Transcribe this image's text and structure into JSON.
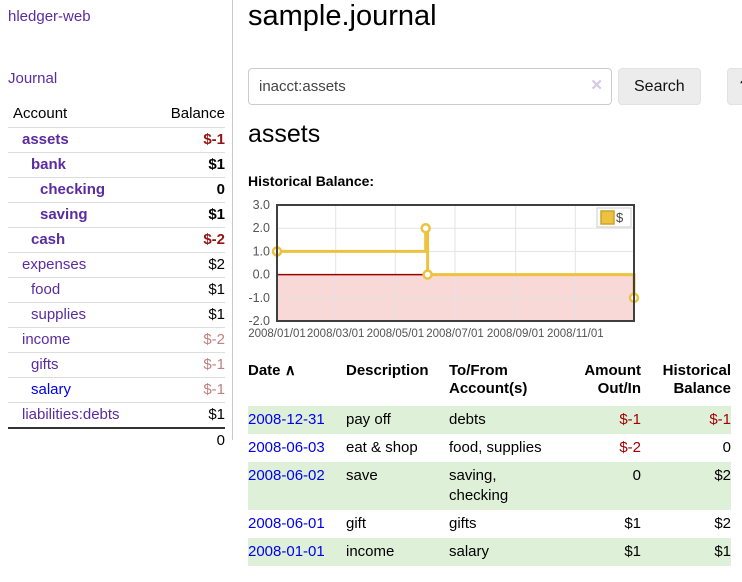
{
  "sidebar": {
    "brand": "hledger-web",
    "nav": {
      "journal": "Journal"
    },
    "table": {
      "headers": {
        "account": "Account",
        "balance": "Balance"
      },
      "accounts": [
        {
          "name": "assets",
          "depth": 1,
          "emph": true,
          "balance": "$-1"
        },
        {
          "name": "bank",
          "depth": 2,
          "emph": true,
          "balance": "$1"
        },
        {
          "name": "checking",
          "depth": 3,
          "emph": true,
          "balance": "0"
        },
        {
          "name": "saving",
          "depth": 3,
          "emph": true,
          "balance": "$1"
        },
        {
          "name": "cash",
          "depth": 2,
          "emph": true,
          "balance": "$-2"
        },
        {
          "name": "expenses",
          "depth": 1,
          "emph": false,
          "balance": "$2"
        },
        {
          "name": "food",
          "depth": 2,
          "emph": false,
          "balance": "$1"
        },
        {
          "name": "supplies",
          "depth": 2,
          "emph": false,
          "balance": "$1"
        },
        {
          "name": "income",
          "depth": 1,
          "emph": false,
          "balance": "$-2"
        },
        {
          "name": "gifts",
          "depth": 2,
          "emph": false,
          "balance": "$-1"
        },
        {
          "name": "salary",
          "depth": 2,
          "emph": false,
          "balance": "$-1",
          "unvisited": true
        },
        {
          "name": "liabilities:debts",
          "depth": 1,
          "emph": false,
          "balance": "$1"
        }
      ],
      "total": "0"
    }
  },
  "main": {
    "title": "sample.journal",
    "search": {
      "value": "inacct:assets",
      "clear_icon": "✕",
      "button_label": "Search",
      "help_label": "?"
    },
    "account_heading": "assets",
    "chart_label": "Historical Balance:"
  },
  "chart_data": {
    "type": "line",
    "style": "step-after",
    "title": "Historical Balance",
    "xlim": [
      "2008-01-01",
      "2008-12-31"
    ],
    "ylim": [
      -2,
      3
    ],
    "yticks": [
      3.0,
      2.0,
      1.0,
      0.0,
      -1.0,
      -2.0
    ],
    "ytick_labels": [
      "3.0",
      "2.0",
      "1.0",
      "0.0",
      "-1.0",
      "-2.0"
    ],
    "xticks": [
      {
        "date": "2008-01-01",
        "label": "2008/01/01"
      },
      {
        "date": "2008-03-01",
        "label": "2008/03/01"
      },
      {
        "date": "2008-05-01",
        "label": "2008/05/01"
      },
      {
        "date": "2008-07-01",
        "label": "2008/07/01"
      },
      {
        "date": "2008-09-01",
        "label": "2008/09/01"
      },
      {
        "date": "2008-11-01",
        "label": "2008/11/01"
      }
    ],
    "series": [
      {
        "name": "$",
        "color": "#edc240",
        "points": [
          {
            "date": "2008-01-01",
            "value": 1
          },
          {
            "date": "2008-06-01",
            "value": 2
          },
          {
            "date": "2008-06-03",
            "value": 0
          },
          {
            "date": "2008-12-31",
            "value": -1
          }
        ]
      }
    ],
    "legend": {
      "position": "top-right",
      "label": "$"
    },
    "grid": true,
    "colors": {
      "negative_region": "#f9d8d8",
      "zero_line": "#990000",
      "frame": "#3f3f3f",
      "gridline": "#e3e3e3",
      "tick_text": "#545454"
    }
  },
  "register": {
    "headers": {
      "date": "Date",
      "sort_icon": "∧",
      "description": "Description",
      "accounts": "To/From Account(s)",
      "amount": "Amount Out/In",
      "balance": "Historical Balance"
    },
    "rows": [
      {
        "date": "2008-12-31",
        "description": "pay off",
        "accounts": "debts",
        "amount": "$-1",
        "balance": "$-1"
      },
      {
        "date": "2008-06-03",
        "description": "eat & shop",
        "accounts": "food, supplies",
        "amount": "$-2",
        "balance": "0"
      },
      {
        "date": "2008-06-02",
        "description": "save",
        "accounts": "saving, checking",
        "amount": "0",
        "balance": "$2"
      },
      {
        "date": "2008-06-01",
        "description": "gift",
        "accounts": "gifts",
        "amount": "$1",
        "balance": "$2"
      },
      {
        "date": "2008-01-01",
        "description": "income",
        "accounts": "salary",
        "amount": "$1",
        "balance": "$1"
      }
    ]
  }
}
